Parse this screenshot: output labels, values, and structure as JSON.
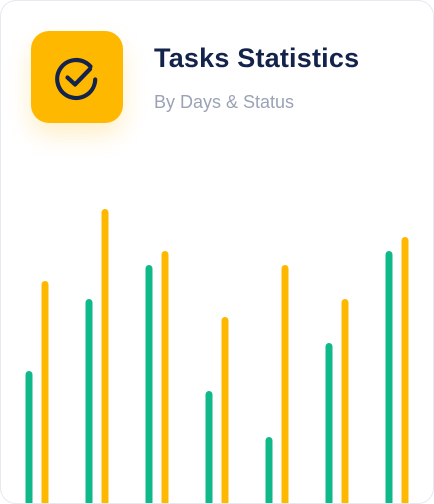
{
  "header": {
    "title": "Tasks Statistics",
    "subtitle": "By Days & Status",
    "icon": "check-circle-icon",
    "icon_bg_color": "#FFB800",
    "icon_fg_color": "#14234B"
  },
  "chart_data": {
    "type": "bar",
    "title": "Tasks Statistics",
    "subtitle": "By Days & Status",
    "categories": [
      "",
      "",
      "",
      "",
      "",
      "",
      ""
    ],
    "series": [
      {
        "color": "#10B98A",
        "values": [
          150,
          222,
          256,
          130,
          84,
          178,
          270
        ]
      },
      {
        "color": "#FFB800",
        "values": [
          240,
          312,
          270,
          204,
          256,
          222,
          284
        ]
      }
    ],
    "ylim": [
      0,
      320
    ],
    "grid": false,
    "legend": "none",
    "xlabel": "",
    "ylabel": ""
  }
}
